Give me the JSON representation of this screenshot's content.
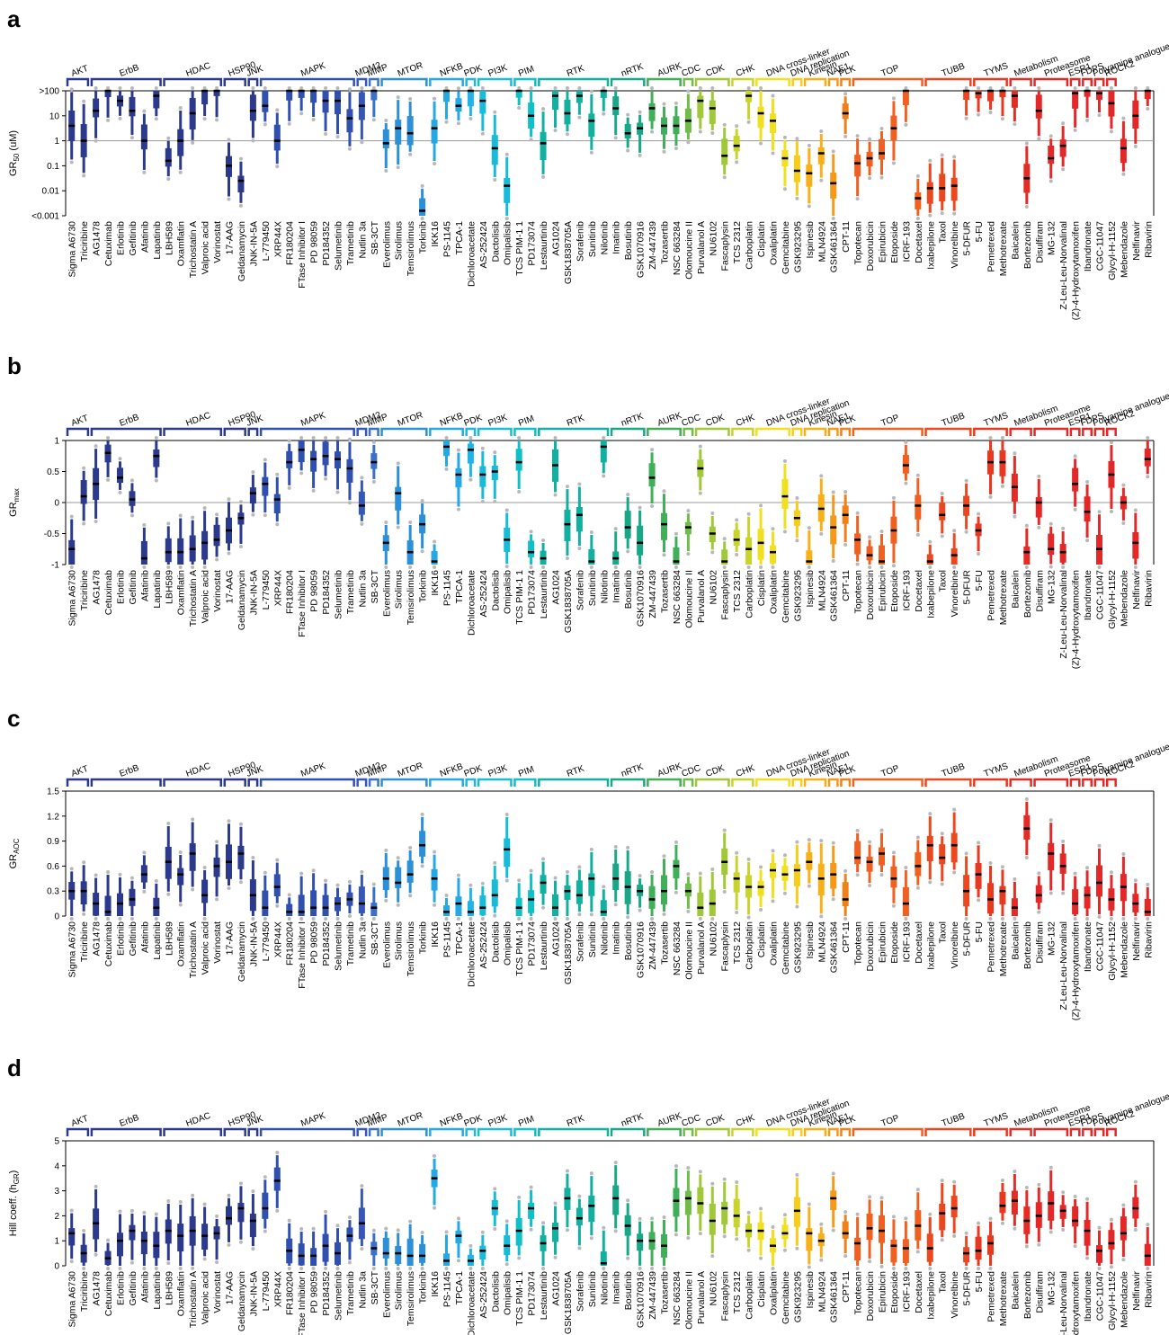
{
  "drugs": [
    "Sigma A6730",
    "Triciribine",
    "AG1478",
    "Cetuximab",
    "Erlotinib",
    "Gefitinib",
    "Afatinib",
    "Lapatinib",
    "LBH589",
    "Oxamflatin",
    "Trichostatin A",
    "Valproic acid",
    "Vorinostat",
    "17-AAG",
    "Geldanamycin",
    "JNK-IN-5A",
    "L-779450",
    "XRP44X",
    "FR180204",
    "FTase Inhibitor I",
    "PD 98059",
    "PD184352",
    "Selumetinib",
    "Trametinib",
    "Nutlin 3a",
    "SB-3CT",
    "Everolimus",
    "Sirolimus",
    "Temsirolimus",
    "Torkinib",
    "IKK16",
    "PS-1145",
    "TPCA-1",
    "Dichloroacetate",
    "AS-252424",
    "Dactolisib",
    "Omipalisib",
    "TCS PIM-1 1",
    "PD173074",
    "Lestaurtinib",
    "AG1024",
    "GSK1838705A",
    "Sorafenib",
    "Sunitinib",
    "Nilotinib",
    "Imatinib",
    "Bosutinib",
    "GSK1070916",
    "ZM-447439",
    "Tozasertib",
    "NSC 663284",
    "Olomoucine II",
    "Purvalanol A",
    "NU6102",
    "Fascaplysin",
    "TCS 2312",
    "Carboplatin",
    "Cisplatin",
    "Oxaliplatin",
    "Gemcitabine",
    "GSK923295",
    "Ispinesib",
    "MLN4924",
    "GSK461364",
    "CPT-11",
    "Topotecan",
    "Doxorubicin",
    "Epirubicin",
    "Etoposide",
    "ICRF-193",
    "Docetaxel",
    "Ixabepilone",
    "Taxol",
    "Vinorelbine",
    "5-DFUR",
    "5-FU",
    "Pemetrexed",
    "Methotrexate",
    "Baicalein",
    "Bortezomib",
    "Disulfiram",
    "MG-132",
    "Z-Leu-Leu-Norvalinal",
    "(Z)-4-Hydroxytamoxifen",
    "Ibandronate",
    "CGC-11047",
    "Glycyl-H-1152",
    "Mebendazole",
    "Nelfinavir",
    "Ribavirin"
  ],
  "classes": [
    {
      "name": "AKT",
      "count": 2,
      "color": "#2b3a8c"
    },
    {
      "name": "ErbB",
      "count": 6,
      "color": "#2b3a8c"
    },
    {
      "name": "HDAC",
      "count": 5,
      "color": "#2b3a8c"
    },
    {
      "name": "HSP90",
      "count": 2,
      "color": "#2b3a8c"
    },
    {
      "name": "JNK",
      "count": 1,
      "color": "#2b3a8c"
    },
    {
      "name": "MAPK",
      "count": 8,
      "color": "#3050b0"
    },
    {
      "name": "MDM2",
      "count": 1,
      "color": "#3558b8"
    },
    {
      "name": "MMP",
      "count": 1,
      "color": "#3a70c8"
    },
    {
      "name": "MTOR",
      "count": 4,
      "color": "#2b90d8"
    },
    {
      "name": "NFKB",
      "count": 3,
      "color": "#26a8e4"
    },
    {
      "name": "PDK",
      "count": 1,
      "color": "#20b4e4"
    },
    {
      "name": "PI3K",
      "count": 3,
      "color": "#18bcd8"
    },
    {
      "name": "PIM",
      "count": 2,
      "color": "#10c0c8"
    },
    {
      "name": "RTK",
      "count": 6,
      "color": "#12b0a0"
    },
    {
      "name": "nRTK",
      "count": 3,
      "color": "#18a888"
    },
    {
      "name": "AURK",
      "count": 3,
      "color": "#40b058"
    },
    {
      "name": "CDC",
      "count": 1,
      "color": "#70bc48"
    },
    {
      "name": "CDK",
      "count": 3,
      "color": "#a0c838"
    },
    {
      "name": "CHK",
      "count": 2,
      "color": "#c8d42c"
    },
    {
      "name": "DNA cross-linker",
      "count": 3,
      "color": "#f0e020"
    },
    {
      "name": "DNA replication",
      "count": 1,
      "color": "#f8cc18"
    },
    {
      "name": "Kinesin",
      "count": 2,
      "color": "#f8b018"
    },
    {
      "name": "NAE1",
      "count": 1,
      "color": "#f89818"
    },
    {
      "name": "PLK",
      "count": 1,
      "color": "#f08018"
    },
    {
      "name": "TOP",
      "count": 6,
      "color": "#f06020"
    },
    {
      "name": "TUBB",
      "count": 4,
      "color": "#ec4820"
    },
    {
      "name": "TYMS",
      "count": 3,
      "color": "#e83820"
    },
    {
      "name": "Metabolism",
      "count": 2,
      "color": "#e42c24"
    },
    {
      "name": "Proteasome",
      "count": 3,
      "color": "#e42828"
    },
    {
      "name": "ESR1",
      "count": 1,
      "color": "#e42828"
    },
    {
      "name": "FDPS",
      "count": 1,
      "color": "#e42828"
    },
    {
      "name": "Polyamine analogue",
      "count": 1,
      "color": "#e42828"
    },
    {
      "name": "ROCK2",
      "count": 1,
      "color": "#e42828"
    },
    {
      "name": "",
      "count": 3,
      "color": "#e42828"
    }
  ],
  "panels": [
    {
      "label": "a",
      "ylabel": "GR",
      "ylabel_sub": "50",
      "ylabel_unit": " (uM)",
      "yticks": [
        ">100",
        "10",
        "1",
        "0.1",
        "0.01",
        "<0.001"
      ],
      "chart_data": {
        "type": "box",
        "scale": "log10",
        "ylim": [
          -3,
          2
        ],
        "ref_line": 0,
        "medians": [
          0.6,
          0,
          1.2,
          2,
          1.6,
          1.2,
          0,
          1.8,
          -0.8,
          0,
          1.1,
          2,
          2,
          -1,
          -1.6,
          1.2,
          1.4,
          0,
          2,
          2,
          2,
          1.6,
          1.6,
          0.9,
          1.4,
          2,
          -0.1,
          0.5,
          0.3,
          -2.8,
          0.5,
          2,
          1.4,
          2,
          1.6,
          -0.3,
          -1.8,
          2,
          1,
          -0.1,
          1.8,
          1.1,
          1.8,
          0.8,
          2,
          1.3,
          0.3,
          0.5,
          1.3,
          0.6,
          0.6,
          0.8,
          1.6,
          1.3,
          -0.6,
          -0.2,
          1.8,
          1.1,
          0.8,
          -0.7,
          -1.2,
          -1.3,
          -0.5,
          -1.7,
          1.1,
          -0.9,
          -0.7,
          -0.5,
          0.5,
          2,
          -2.3,
          -1.9,
          -1.9,
          -1.8,
          2,
          1.9,
          2,
          2,
          1.8,
          -1.5,
          1.2,
          -0.7,
          -0.2,
          1.9,
          2,
          1.9,
          1.5,
          -0.3,
          1,
          2
        ]
      }
    },
    {
      "label": "b",
      "ylabel": "GR",
      "ylabel_sub": "max",
      "ylabel_unit": "",
      "yticks": [
        "1",
        "0.5",
        "0",
        "-0.5",
        "-1"
      ],
      "chart_data": {
        "type": "box",
        "scale": "linear",
        "ylim": [
          -1,
          1
        ],
        "ref_line": 0,
        "medians": [
          -0.75,
          0.1,
          0.3,
          0.8,
          0.4,
          0.05,
          -0.9,
          0.75,
          -0.8,
          -0.8,
          -0.75,
          -0.65,
          -0.6,
          -0.45,
          -0.25,
          0.15,
          0.3,
          0.05,
          0.65,
          0.85,
          0.7,
          0.75,
          0.7,
          0.55,
          -0.05,
          0.65,
          -0.65,
          0.15,
          -0.8,
          -0.35,
          -0.95,
          0.9,
          0.45,
          0.85,
          0.45,
          0.5,
          -0.6,
          0.65,
          -0.8,
          -0.9,
          0.6,
          -0.35,
          -0.2,
          -0.95,
          0.9,
          -0.9,
          -0.4,
          -0.65,
          0.4,
          -0.35,
          -0.95,
          -0.4,
          0.55,
          -0.5,
          -0.95,
          -0.6,
          -0.75,
          -0.65,
          -0.8,
          0.1,
          -0.25,
          -0.95,
          -0.1,
          -0.4,
          -0.2,
          -0.6,
          -0.85,
          -0.95,
          -0.45,
          0.6,
          -0.05,
          -0.95,
          -0.2,
          -0.85,
          -0.05,
          -0.45,
          0.65,
          0.65,
          0.25,
          -0.8,
          0,
          -0.75,
          -0.8,
          0.3,
          -0.15,
          -0.75,
          0.45,
          0,
          -0.65,
          0.7
        ]
      }
    },
    {
      "label": "c",
      "ylabel": "GR",
      "ylabel_sub": "AOC",
      "ylabel_unit": "",
      "yticks": [
        "1.5",
        "1.2",
        "0.9",
        "0.6",
        "0.3",
        "0"
      ],
      "chart_data": {
        "type": "box",
        "scale": "linear",
        "ylim": [
          0,
          1.5
        ],
        "ref_line": null,
        "medians": [
          0.3,
          0.3,
          0.15,
          0.05,
          0.15,
          0.2,
          0.5,
          0.1,
          0.65,
          0.5,
          0.75,
          0.25,
          0.6,
          0.65,
          0.75,
          0.25,
          0.1,
          0.35,
          0.05,
          0.05,
          0.1,
          0.1,
          0.15,
          0.2,
          0.15,
          0.1,
          0.45,
          0.4,
          0.5,
          0.85,
          0.45,
          0.05,
          0.15,
          0.05,
          0.1,
          0.25,
          0.8,
          0.1,
          0.2,
          0.4,
          0.1,
          0.3,
          0.25,
          0.45,
          0.05,
          0.45,
          0.35,
          0.3,
          0.2,
          0.3,
          0.6,
          0.3,
          0.1,
          0.15,
          0.65,
          0.45,
          0.35,
          0.35,
          0.55,
          0.5,
          0.55,
          0.65,
          0.45,
          0.5,
          0.2,
          0.7,
          0.65,
          0.75,
          0.45,
          0.15,
          0.6,
          0.85,
          0.7,
          0.85,
          0.3,
          0.5,
          0.2,
          0.3,
          0.1,
          1.05,
          0.25,
          0.75,
          0.6,
          0.15,
          0.25,
          0.4,
          0.2,
          0.35,
          0.15,
          0.05
        ]
      }
    },
    {
      "label": "d",
      "ylabel": "Hill coeff. (h",
      "ylabel_sub": "GR",
      "ylabel_unit": ")",
      "yticks": [
        "5",
        "4",
        "3",
        "2",
        "1",
        "0"
      ],
      "chart_data": {
        "type": "box",
        "scale": "linear",
        "ylim": [
          0,
          5
        ],
        "ref_line": null,
        "medians": [
          1.3,
          0.5,
          1.7,
          0.3,
          1,
          1.4,
          1,
          0.8,
          1.4,
          1.2,
          1.4,
          1.2,
          1.3,
          1.9,
          2.3,
          1.8,
          2.3,
          3.4,
          0.6,
          0.4,
          0.4,
          0.8,
          0.5,
          1.2,
          1.7,
          0.7,
          0.5,
          0.5,
          0.4,
          0.4,
          3.5,
          0.2,
          1.2,
          0.2,
          0.6,
          2.3,
          0.8,
          1.4,
          2.3,
          0.9,
          1.5,
          2.7,
          1.9,
          2.4,
          0.1,
          2.7,
          1.6,
          1,
          1,
          0.8,
          2.6,
          2.7,
          2.5,
          1.8,
          2.3,
          2,
          1.4,
          1.4,
          0.8,
          1.3,
          2.2,
          1.3,
          1,
          2.7,
          1.3,
          0.9,
          1.5,
          1.4,
          0.8,
          0.7,
          1.6,
          0.7,
          2.1,
          2.3,
          0.5,
          0.6,
          0.9,
          2.4,
          2.6,
          1.8,
          2,
          2.5,
          2.2,
          1.8,
          1.4,
          0.6,
          0.9,
          1.3,
          2.3,
          0.4
        ]
      }
    }
  ]
}
